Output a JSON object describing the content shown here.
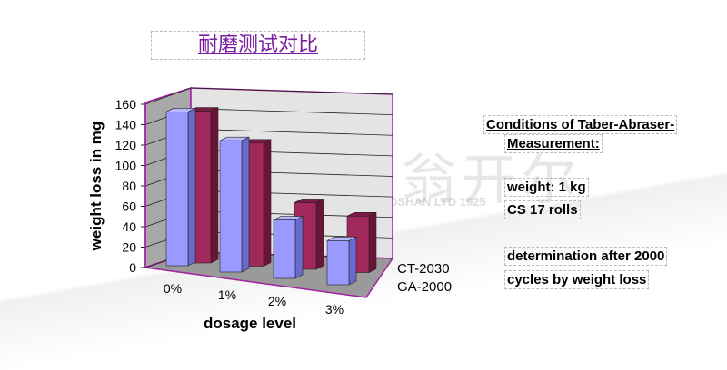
{
  "title": "耐磨测试对比",
  "watermark": {
    "text": "佛山翁开尔",
    "subtext": "KINGCHEM FOSHAN LTD 1925"
  },
  "conditions": {
    "heading1": "Conditions of Taber-Abraser-",
    "heading2": "Measurement:",
    "line1": "weight: 1 kg",
    "line2": "CS 17 rolls",
    "line3": "determination after 2000",
    "line4": "cycles by weight loss"
  },
  "chart_data": {
    "type": "bar",
    "style": "3d-column",
    "title": "",
    "xlabel": "dosage level",
    "ylabel": "weight loss in mg",
    "categories": [
      "0%",
      "1%",
      "2%",
      "3%"
    ],
    "ylim": [
      0,
      160
    ],
    "yticks": [
      "0",
      "20",
      "40",
      "60",
      "80",
      "100",
      "120",
      "140",
      "160"
    ],
    "grid": true,
    "legend_position": "right",
    "series": [
      {
        "name": "CT-2030",
        "color": "#a0285a",
        "values": [
          148,
          120,
          65,
          55
        ]
      },
      {
        "name": "GA-2000",
        "color": "#9999ff",
        "values": [
          150,
          128,
          57,
          43
        ]
      }
    ]
  }
}
